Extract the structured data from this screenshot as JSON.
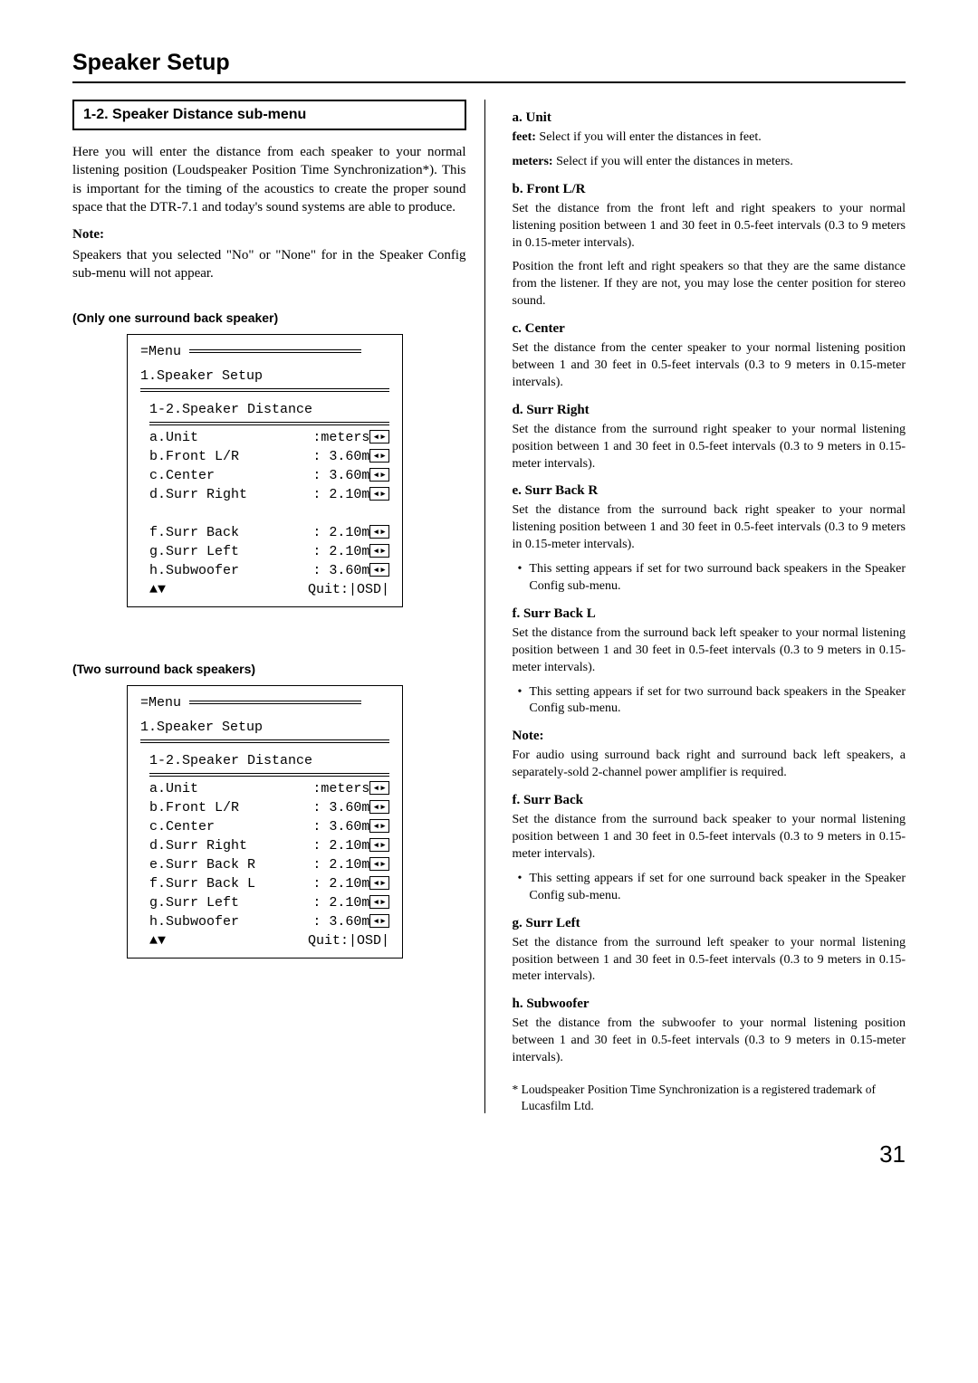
{
  "title": "Speaker Setup",
  "page_number": "31",
  "left": {
    "section_title": "1-2. Speaker Distance sub-menu",
    "intro": "Here you will enter the distance from each speaker to your normal listening position (Loudspeaker Position Time Synchronization*). This is important for the timing of the acoustics to create the proper sound space that the DTR-7.1 and today's sound systems are able to produce.",
    "note_label": "Note:",
    "note_text": "Speakers that you selected \"No\" or \"None\" for in the Speaker Config sub-menu will not appear.",
    "menu1_label": "(Only one surround back speaker)",
    "menu2_label": "(Two surround back speakers)",
    "menu_hdr": "Menu",
    "menu_title": "1.Speaker Setup",
    "menu_subtitle": "1-2.Speaker Distance",
    "quit_label": "Quit:|OSD|",
    "menu1_items": [
      {
        "k": "a.Unit",
        "v": ":meters"
      },
      {
        "k": "b.Front L/R",
        "v": ": 3.60m"
      },
      {
        "k": "c.Center",
        "v": ": 3.60m"
      },
      {
        "k": "d.Surr Right",
        "v": ": 2.10m"
      },
      {
        "k": "",
        "v": ""
      },
      {
        "k": "f.Surr Back",
        "v": ": 2.10m"
      },
      {
        "k": "g.Surr Left",
        "v": ": 2.10m"
      },
      {
        "k": "h.Subwoofer",
        "v": ": 3.60m"
      }
    ],
    "menu2_items": [
      {
        "k": "a.Unit",
        "v": ":meters"
      },
      {
        "k": "b.Front L/R",
        "v": ": 3.60m"
      },
      {
        "k": "c.Center",
        "v": ": 3.60m"
      },
      {
        "k": "d.Surr Right",
        "v": ": 2.10m"
      },
      {
        "k": "e.Surr Back R",
        "v": ": 2.10m"
      },
      {
        "k": "f.Surr Back L",
        "v": ": 2.10m"
      },
      {
        "k": "g.Surr Left",
        "v": ": 2.10m"
      },
      {
        "k": "h.Subwoofer",
        "v": ": 3.60m"
      }
    ]
  },
  "right": {
    "a_title": "a. Unit",
    "a_feet": "feet:",
    "a_feet_txt": " Select if you will enter the distances in feet.",
    "a_meters": "meters:",
    "a_meters_txt": " Select if you will enter the distances in meters.",
    "b_title": "b. Front L/R",
    "b_txt1": "Set the distance from the front left and right speakers to your normal listening position between 1 and 30 feet in 0.5-feet intervals (0.3 to 9 meters in 0.15-meter intervals).",
    "b_txt2": "Position the front left and right speakers so that they are the same distance from the listener. If they are not, you may lose the center position for stereo sound.",
    "c_title": "c. Center",
    "c_txt": "Set the distance from the center speaker to your normal listening position between 1 and 30 feet in 0.5-feet intervals (0.3 to 9 meters in 0.15-meter intervals).",
    "d_title": "d. Surr Right",
    "d_txt": "Set the distance from the surround right speaker to your normal listening position between 1 and 30 feet in 0.5-feet intervals (0.3 to 9 meters in 0.15-meter intervals).",
    "e_title": "e. Surr Back R",
    "e_txt": "Set the distance from the surround back right speaker to your normal listening position between 1 and 30 feet in 0.5-feet intervals (0.3 to 9 meters in 0.15-meter intervals).",
    "e_bullet": "This setting appears if set for two surround back speakers in the Speaker Config sub-menu.",
    "f1_title": "f. Surr Back L",
    "f1_txt": "Set the distance from the surround back left speaker to your normal listening position between 1 and 30 feet in 0.5-feet intervals (0.3 to 9 meters in 0.15-meter intervals).",
    "f1_bullet": "This setting appears if set for two surround back speakers in the Speaker Config sub-menu.",
    "note2_label": "Note:",
    "note2_txt": "For audio using surround back right and surround back left speakers, a separately-sold 2-channel power amplifier is required.",
    "f2_title": "f. Surr Back",
    "f2_txt": "Set the distance from the surround back speaker to your normal listening position between 1 and 30 feet in 0.5-feet intervals (0.3 to 9 meters in 0.15-meter intervals).",
    "f2_bullet": "This setting appears if set for one surround back speaker in the Speaker Config sub-menu.",
    "g_title": "g. Surr Left",
    "g_txt": "Set the distance from the surround left speaker to your normal listening position between 1 and 30 feet in 0.5-feet intervals (0.3 to 9 meters in 0.15-meter intervals).",
    "h_title": "h. Subwoofer",
    "h_txt": "Set the distance from the subwoofer to your normal listening position between 1 and 30 feet in 0.5-feet intervals (0.3 to 9 meters in 0.15-meter intervals).",
    "footnote": "* Loudspeaker Position Time Synchronization is a registered trademark of Lucasfilm Ltd."
  }
}
